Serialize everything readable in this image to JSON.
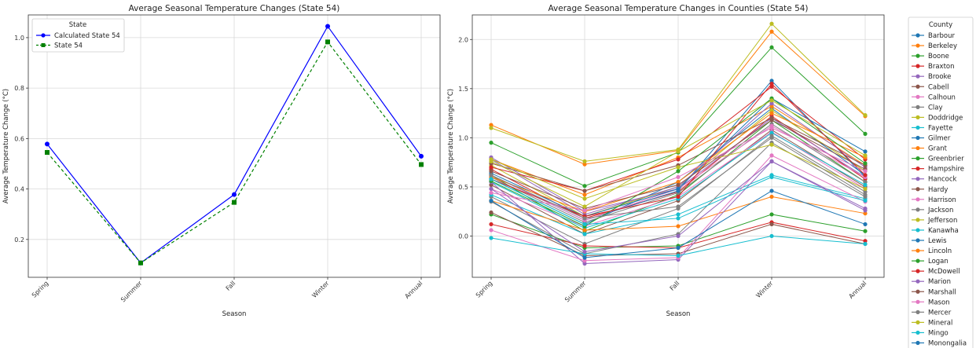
{
  "chart_data": [
    {
      "type": "line",
      "title": "Average Seasonal Temperature Changes (State 54)",
      "xlabel": "Season",
      "ylabel": "Average Temperature Change (°C)",
      "categories": [
        "Spring",
        "Summer",
        "Fall",
        "Winter",
        "Annual"
      ],
      "ylim": [
        0.05,
        1.09
      ],
      "yticks": [
        0.2,
        0.4,
        0.6,
        0.8,
        1.0
      ],
      "grid": true,
      "legend": {
        "title": "State",
        "placement": "top-left"
      },
      "series": [
        {
          "name": "Calculated State 54",
          "color": "#0000ff",
          "marker": "circle",
          "dash": "solid",
          "values": [
            0.578,
            0.107,
            0.378,
            1.045,
            0.53
          ]
        },
        {
          "name": "State 54",
          "color": "#008000",
          "marker": "square",
          "dash": "dashed",
          "values": [
            0.545,
            0.107,
            0.347,
            0.983,
            0.497
          ]
        }
      ]
    },
    {
      "type": "line",
      "title": "Average Seasonal Temperature Changes in Counties (State 54)",
      "xlabel": "Season",
      "ylabel": "Average Temperature Change (°C)",
      "categories": [
        "Spring",
        "Summer",
        "Fall",
        "Winter",
        "Annual"
      ],
      "ylim": [
        -0.42,
        2.25
      ],
      "yticks": [
        0.0,
        0.5,
        1.0,
        1.5,
        2.0
      ],
      "grid": true,
      "legend": {
        "title": "County",
        "placement": "outside-right"
      },
      "series": [
        {
          "name": "Barbour",
          "color": "#1f77b4",
          "values": [
            0.58,
            0.12,
            0.55,
            1.3,
            0.62
          ]
        },
        {
          "name": "Berkeley",
          "color": "#ff7f0e",
          "values": [
            1.13,
            0.73,
            0.87,
            2.08,
            1.22
          ]
        },
        {
          "name": "Boone",
          "color": "#2ca02c",
          "values": [
            0.62,
            0.05,
            0.42,
            1.18,
            0.55
          ]
        },
        {
          "name": "Braxton",
          "color": "#d62728",
          "values": [
            0.68,
            0.18,
            0.45,
            1.22,
            0.58
          ]
        },
        {
          "name": "Brooke",
          "color": "#9467bd",
          "values": [
            0.8,
            0.25,
            0.48,
            1.2,
            0.6
          ]
        },
        {
          "name": "Cabell",
          "color": "#8c564b",
          "values": [
            0.52,
            0.02,
            0.36,
            1.08,
            0.5
          ]
        },
        {
          "name": "Calhoun",
          "color": "#e377c2",
          "values": [
            0.48,
            0.1,
            0.4,
            1.06,
            0.48
          ]
        },
        {
          "name": "Clay",
          "color": "#7f7f7f",
          "values": [
            0.6,
            0.14,
            0.44,
            1.14,
            0.55
          ]
        },
        {
          "name": "Doddridge",
          "color": "#bcbd22",
          "values": [
            0.72,
            0.2,
            0.5,
            1.28,
            0.66
          ]
        },
        {
          "name": "Fayette",
          "color": "#17becf",
          "values": [
            0.55,
            0.08,
            0.38,
            1.05,
            0.52
          ]
        },
        {
          "name": "Gilmer",
          "color": "#1f77b4",
          "values": [
            0.62,
            0.16,
            0.46,
            1.58,
            0.6
          ]
        },
        {
          "name": "Grant",
          "color": "#ff7f0e",
          "values": [
            0.78,
            0.42,
            0.8,
            1.32,
            0.72
          ]
        },
        {
          "name": "Greenbrier",
          "color": "#2ca02c",
          "values": [
            0.95,
            0.51,
            0.85,
            1.92,
            1.04
          ]
        },
        {
          "name": "Hampshire",
          "color": "#d62728",
          "values": [
            0.7,
            0.46,
            0.78,
            1.52,
            0.78
          ]
        },
        {
          "name": "Hancock",
          "color": "#9467bd",
          "values": [
            0.78,
            0.22,
            0.5,
            1.35,
            0.7
          ]
        },
        {
          "name": "Hardy",
          "color": "#8c564b",
          "values": [
            0.74,
            0.46,
            0.72,
            1.2,
            0.72
          ]
        },
        {
          "name": "Harrison",
          "color": "#e377c2",
          "values": [
            0.62,
            0.16,
            0.48,
            1.12,
            0.6
          ]
        },
        {
          "name": "Jackson",
          "color": "#7f7f7f",
          "values": [
            0.4,
            -0.08,
            0.28,
            1.02,
            0.45
          ]
        },
        {
          "name": "Jefferson",
          "color": "#bcbd22",
          "values": [
            1.1,
            0.76,
            0.88,
            2.16,
            1.23
          ]
        },
        {
          "name": "Kanawha",
          "color": "#17becf",
          "values": [
            0.42,
            0.02,
            0.22,
            0.62,
            0.38
          ]
        },
        {
          "name": "Lewis",
          "color": "#1f77b4",
          "values": [
            0.64,
            0.2,
            0.48,
            1.4,
            0.86
          ]
        },
        {
          "name": "Lincoln",
          "color": "#ff7f0e",
          "values": [
            0.36,
            0.06,
            0.1,
            0.4,
            0.23
          ]
        },
        {
          "name": "Logan",
          "color": "#2ca02c",
          "values": [
            0.22,
            -0.12,
            -0.1,
            0.22,
            0.05
          ]
        },
        {
          "name": "McDowell",
          "color": "#d62728",
          "values": [
            0.12,
            -0.1,
            -0.12,
            0.14,
            -0.05
          ]
        },
        {
          "name": "Marion",
          "color": "#9467bd",
          "values": [
            0.55,
            -0.28,
            -0.24,
            0.76,
            0.28
          ]
        },
        {
          "name": "Marshall",
          "color": "#8c564b",
          "values": [
            0.24,
            -0.2,
            -0.18,
            0.12,
            -0.08
          ]
        },
        {
          "name": "Mason",
          "color": "#e377c2",
          "values": [
            0.06,
            -0.25,
            -0.22,
            0.82,
            0.35
          ]
        },
        {
          "name": "Mercer",
          "color": "#7f7f7f",
          "values": [
            0.35,
            -0.18,
            0.02,
            0.95,
            0.4
          ]
        },
        {
          "name": "Mineral",
          "color": "#bcbd22",
          "values": [
            0.78,
            0.38,
            0.7,
            0.93,
            0.48
          ]
        },
        {
          "name": "Mingo",
          "color": "#17becf",
          "values": [
            -0.02,
            -0.18,
            -0.2,
            0.0,
            -0.08
          ]
        },
        {
          "name": "Monongalia",
          "color": "#1f77b4",
          "values": [
            0.36,
            -0.22,
            -0.12,
            0.46,
            0.12
          ]
        },
        {
          "name": "",
          "color": "#ff7f0e",
          "values": [
            0.6,
            0.25,
            0.55,
            1.25,
            0.8
          ]
        },
        {
          "name": "",
          "color": "#2ca02c",
          "values": [
            0.56,
            0.1,
            0.66,
            1.4,
            0.74
          ]
        },
        {
          "name": "",
          "color": "#d62728",
          "values": [
            0.58,
            0.2,
            0.4,
            1.55,
            0.62
          ]
        },
        {
          "name": "",
          "color": "#9467bd",
          "values": [
            0.48,
            -0.16,
            0.0,
            0.76,
            0.26
          ]
        },
        {
          "name": "",
          "color": "#8c564b",
          "values": [
            0.66,
            0.28,
            0.52,
            1.18,
            0.68
          ]
        },
        {
          "name": "",
          "color": "#e377c2",
          "values": [
            0.44,
            0.26,
            0.6,
            1.1,
            0.66
          ]
        },
        {
          "name": "",
          "color": "#7f7f7f",
          "values": [
            0.62,
            0.18,
            0.3,
            1.0,
            0.42
          ]
        },
        {
          "name": "",
          "color": "#bcbd22",
          "values": [
            0.76,
            0.3,
            0.86,
            1.38,
            0.82
          ]
        },
        {
          "name": "",
          "color": "#17becf",
          "values": [
            0.58,
            0.12,
            0.18,
            0.6,
            0.36
          ]
        }
      ]
    }
  ]
}
